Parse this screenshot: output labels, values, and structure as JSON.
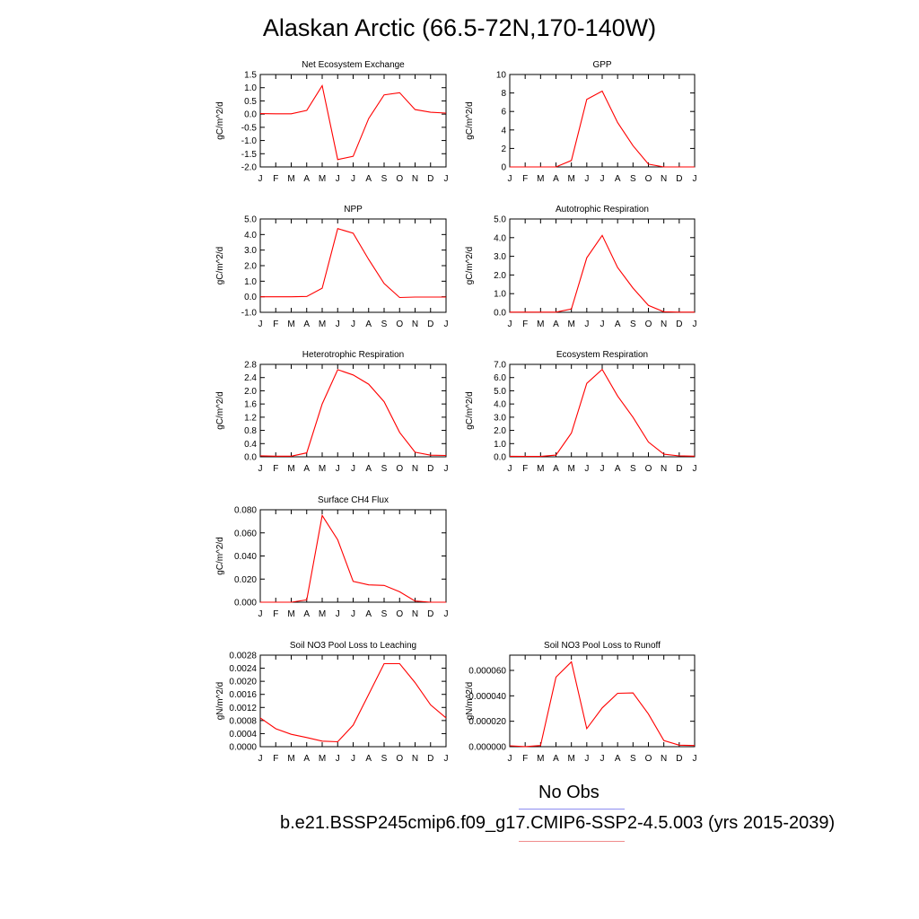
{
  "page": {
    "title": "Alaskan Arctic (66.5-72N,170-140W)"
  },
  "legend": {
    "obs_label": "No Obs",
    "obs_color": "#8c8cf0",
    "model_label": "b.e21.BSSP245cmip6.f09_g17.CMIP6-SSP2-4.5.003 (yrs 2015-2039)",
    "model_color": "#f08c8c"
  },
  "chart_data": [
    {
      "type": "line",
      "title": "Net Ecosystem Exchange",
      "ylabel": "gC/m^2/d",
      "xlabel": "",
      "x": [
        "J",
        "F",
        "M",
        "A",
        "M",
        "J",
        "J",
        "A",
        "S",
        "O",
        "N",
        "D",
        "J"
      ],
      "ylim": [
        -2.0,
        1.5
      ],
      "yticks": [
        "-2.0",
        "-1.5",
        "-1.0",
        "-0.5",
        "0.0",
        "0.5",
        "1.0",
        "1.5"
      ],
      "series": [
        {
          "color": "#ff0000",
          "values": [
            0.02,
            0.01,
            0.01,
            0.14,
            1.08,
            -1.72,
            -1.6,
            -0.17,
            0.73,
            0.81,
            0.17,
            0.07,
            0.04
          ]
        }
      ]
    },
    {
      "type": "line",
      "title": "GPP",
      "ylabel": "gC/m^2/d",
      "xlabel": "",
      "x": [
        "J",
        "F",
        "M",
        "A",
        "M",
        "J",
        "J",
        "A",
        "S",
        "O",
        "N",
        "D",
        "J"
      ],
      "ylim": [
        0,
        10
      ],
      "yticks": [
        "0",
        "2",
        "4",
        "6",
        "8",
        "10"
      ],
      "series": [
        {
          "color": "#ff0000",
          "values": [
            0,
            0,
            0,
            0,
            0.7,
            7.3,
            8.2,
            4.8,
            2.3,
            0.3,
            0,
            0,
            0
          ]
        }
      ]
    },
    {
      "type": "line",
      "title": "NPP",
      "ylabel": "gC/m^2/d",
      "xlabel": "",
      "x": [
        "J",
        "F",
        "M",
        "A",
        "M",
        "J",
        "J",
        "A",
        "S",
        "O",
        "N",
        "D",
        "J"
      ],
      "ylim": [
        -1.0,
        5.0
      ],
      "yticks": [
        "-1.0",
        "0.0",
        "1.0",
        "2.0",
        "3.0",
        "4.0",
        "5.0"
      ],
      "series": [
        {
          "color": "#ff0000",
          "values": [
            0,
            0,
            0,
            0.02,
            0.55,
            4.38,
            4.08,
            2.4,
            0.85,
            -0.05,
            -0.02,
            -0.02,
            -0.02
          ]
        }
      ]
    },
    {
      "type": "line",
      "title": "Autotrophic Respiration",
      "ylabel": "gC/m^2/d",
      "xlabel": "",
      "x": [
        "J",
        "F",
        "M",
        "A",
        "M",
        "J",
        "J",
        "A",
        "S",
        "O",
        "N",
        "D",
        "J"
      ],
      "ylim": [
        0.0,
        5.0
      ],
      "yticks": [
        "0.0",
        "1.0",
        "2.0",
        "3.0",
        "4.0",
        "5.0"
      ],
      "series": [
        {
          "color": "#ff0000",
          "values": [
            0.01,
            0.01,
            0.01,
            0.01,
            0.18,
            2.92,
            4.12,
            2.4,
            1.3,
            0.37,
            0.03,
            0.01,
            0.01
          ]
        }
      ]
    },
    {
      "type": "line",
      "title": "Heterotrophic Respiration",
      "ylabel": "gC/m^2/d",
      "xlabel": "",
      "x": [
        "J",
        "F",
        "M",
        "A",
        "M",
        "J",
        "J",
        "A",
        "S",
        "O",
        "N",
        "D",
        "J"
      ],
      "ylim": [
        0.0,
        2.8
      ],
      "yticks": [
        "0.0",
        "0.4",
        "0.8",
        "1.2",
        "1.6",
        "2.0",
        "2.4",
        "2.8"
      ],
      "series": [
        {
          "color": "#ff0000",
          "values": [
            0.03,
            0.02,
            0.02,
            0.12,
            1.6,
            2.64,
            2.48,
            2.2,
            1.67,
            0.74,
            0.14,
            0.05,
            0.04
          ]
        }
      ]
    },
    {
      "type": "line",
      "title": "Ecosystem Respiration",
      "ylabel": "gC/m^2/d",
      "xlabel": "",
      "x": [
        "J",
        "F",
        "M",
        "A",
        "M",
        "J",
        "J",
        "A",
        "S",
        "O",
        "N",
        "D",
        "J"
      ],
      "ylim": [
        0.0,
        7.0
      ],
      "yticks": [
        "0.0",
        "1.0",
        "2.0",
        "3.0",
        "4.0",
        "5.0",
        "6.0",
        "7.0"
      ],
      "series": [
        {
          "color": "#ff0000",
          "values": [
            0.04,
            0.03,
            0.03,
            0.13,
            1.8,
            5.56,
            6.62,
            4.6,
            3.0,
            1.12,
            0.2,
            0.07,
            0.05
          ]
        }
      ]
    },
    {
      "type": "line",
      "title": "Surface CH4 Flux",
      "ylabel": "gC/m^2/d",
      "xlabel": "",
      "x": [
        "J",
        "F",
        "M",
        "A",
        "M",
        "J",
        "J",
        "A",
        "S",
        "O",
        "N",
        "D",
        "J"
      ],
      "ylim": [
        0.0,
        0.08
      ],
      "yticks": [
        "0.000",
        "0.020",
        "0.040",
        "0.060",
        "0.080"
      ],
      "series": [
        {
          "color": "#ff0000",
          "values": [
            0.0,
            0.0,
            0.0,
            0.002,
            0.075,
            0.054,
            0.018,
            0.015,
            0.0145,
            0.009,
            0.001,
            0.0,
            0.0
          ]
        }
      ]
    },
    {
      "type": "line",
      "title": "Soil NO3 Pool Loss to Leaching",
      "ylabel": "gN/m^2/d",
      "xlabel": "",
      "x": [
        "J",
        "F",
        "M",
        "A",
        "M",
        "J",
        "J",
        "A",
        "S",
        "O",
        "N",
        "D",
        "J"
      ],
      "ylim": [
        0.0,
        0.0028
      ],
      "yticks": [
        "0.0000",
        "0.0004",
        "0.0008",
        "0.0012",
        "0.0016",
        "0.0020",
        "0.0024",
        "0.0028"
      ],
      "series": [
        {
          "color": "#ff0000",
          "values": [
            0.00088,
            0.00055,
            0.00038,
            0.00028,
            0.00017,
            0.00015,
            0.00066,
            0.0016,
            0.00254,
            0.00254,
            0.00196,
            0.00128,
            0.00088
          ]
        }
      ]
    },
    {
      "type": "line",
      "title": "Soil NO3 Pool Loss to Runoff",
      "ylabel": "gN/m^2/d",
      "xlabel": "",
      "x": [
        "J",
        "F",
        "M",
        "A",
        "M",
        "J",
        "J",
        "A",
        "S",
        "O",
        "N",
        "D",
        "J"
      ],
      "ylim": [
        0.0,
        7.2e-05
      ],
      "yticks": [
        "0.000000",
        "0.000020",
        "0.000040",
        "0.000060"
      ],
      "series": [
        {
          "color": "#ff0000",
          "values": [
            7e-07,
            1e-07,
            9e-07,
            5.47e-05,
            6.67e-05,
            1.42e-05,
            3.05e-05,
            4.2e-05,
            4.23e-05,
            2.57e-05,
            4.8e-06,
            1.2e-06,
            9e-07
          ]
        }
      ]
    }
  ]
}
